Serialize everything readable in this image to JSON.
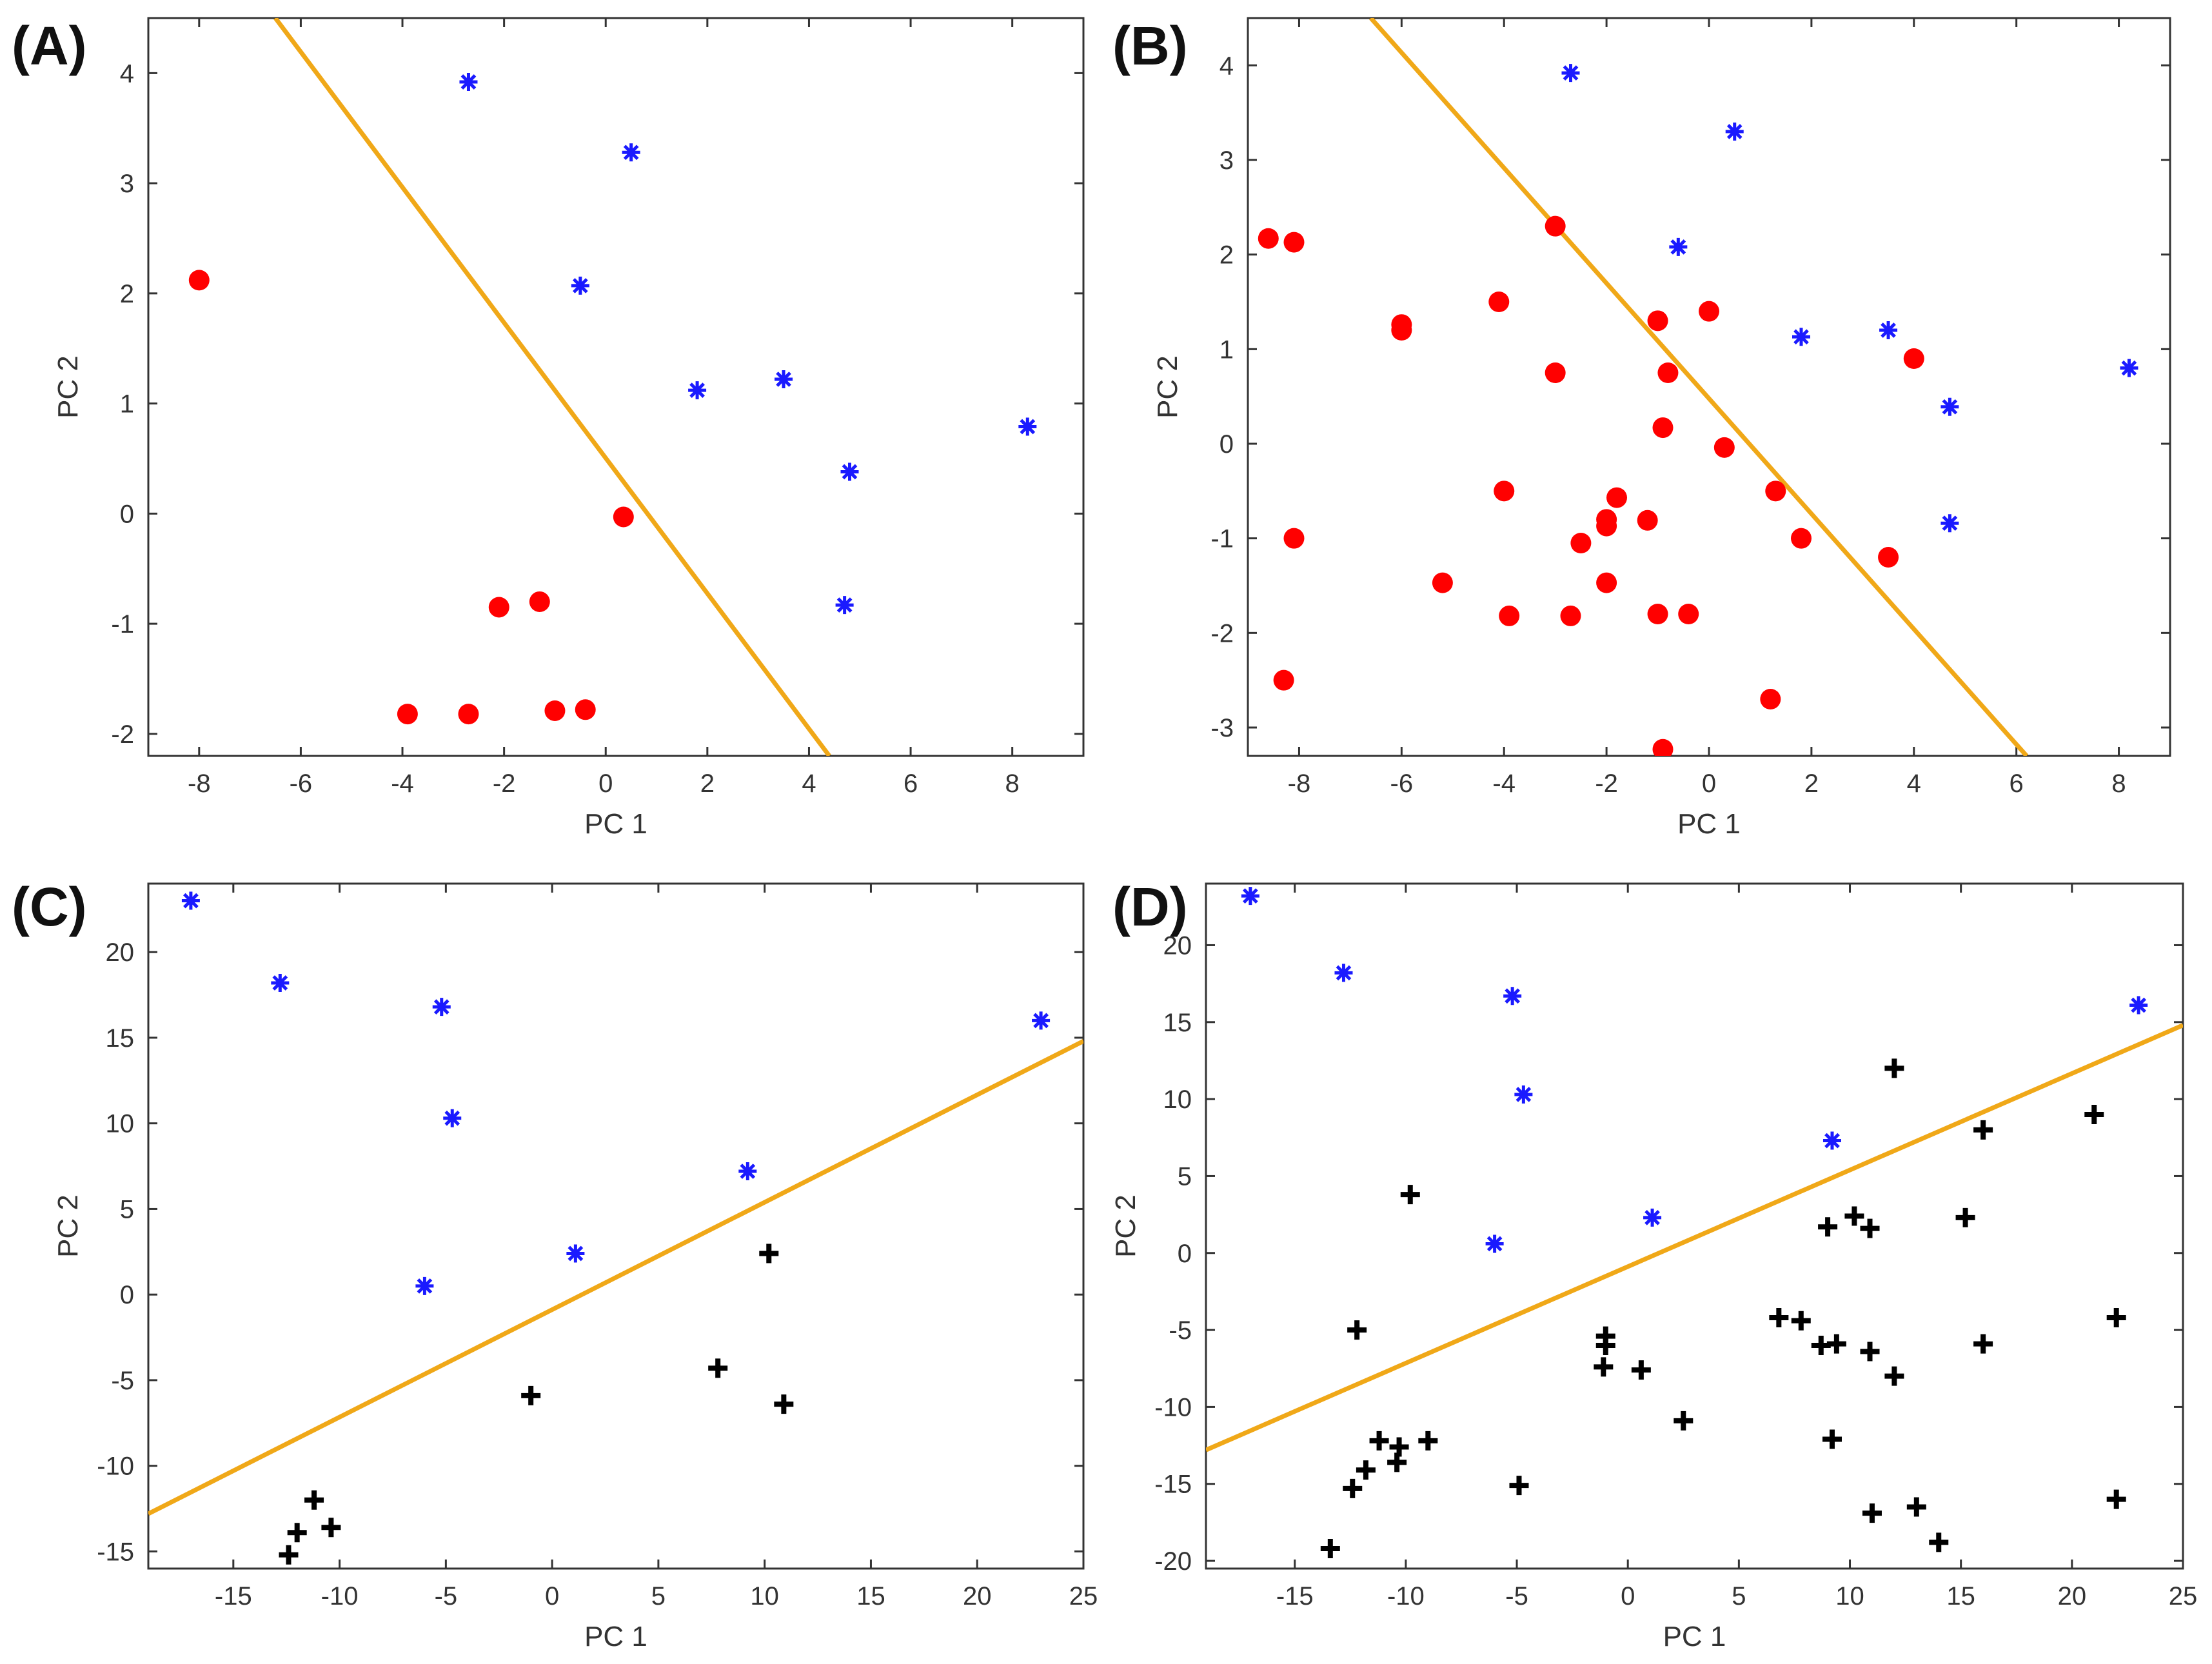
{
  "colors": {
    "class_red": "#ff0000",
    "class_blue": "#1a1aff",
    "class_black": "#000000",
    "boundary": "#f0a818",
    "axis": "#333333"
  },
  "chart_data": [
    {
      "panel_label": "(A)",
      "type": "scatter",
      "xlabel": "PC 1",
      "ylabel": "PC 2",
      "xlim": [
        -9,
        9.4
      ],
      "ylim": [
        -2.2,
        4.5
      ],
      "xticks": [
        -8,
        -6,
        -4,
        -2,
        0,
        2,
        4,
        6,
        8
      ],
      "yticks": [
        -2,
        -1,
        0,
        1,
        2,
        3,
        4
      ],
      "xtick_labels": [
        "-8",
        "-6",
        "-4",
        "-2",
        "0",
        "2",
        "4",
        "6",
        "8"
      ],
      "ytick_labels": [
        "-2",
        "-1",
        "0",
        "1",
        "2",
        "3",
        "4"
      ],
      "grid": false,
      "series": [
        {
          "name": "red",
          "marker": "dot",
          "color": "#ff0000",
          "points": [
            [
              -8,
              2.12
            ],
            [
              0.35,
              -0.03
            ],
            [
              -2.1,
              -0.85
            ],
            [
              -1.3,
              -0.8
            ],
            [
              -3.9,
              -1.82
            ],
            [
              -2.7,
              -1.82
            ],
            [
              -1,
              -1.79
            ],
            [
              -0.4,
              -1.78
            ]
          ]
        },
        {
          "name": "blue",
          "marker": "asterisk",
          "color": "#1a1aff",
          "points": [
            [
              -2.7,
              3.92
            ],
            [
              0.5,
              3.28
            ],
            [
              -0.5,
              2.07
            ],
            [
              1.8,
              1.12
            ],
            [
              3.5,
              1.22
            ],
            [
              4.8,
              0.38
            ],
            [
              8.3,
              0.79
            ],
            [
              4.7,
              -0.83
            ]
          ]
        }
      ],
      "boundary": {
        "x": [
          -6.5,
          4.4
        ],
        "y": [
          4.5,
          -2.2
        ]
      }
    },
    {
      "panel_label": "(B)",
      "type": "scatter",
      "xlabel": "PC 1",
      "ylabel": "PC 2",
      "xlim": [
        -9,
        9
      ],
      "ylim": [
        -3.3,
        4.5
      ],
      "xticks": [
        -8,
        -6,
        -4,
        -2,
        0,
        2,
        4,
        6,
        8
      ],
      "yticks": [
        -3,
        -2,
        -1,
        0,
        1,
        2,
        3,
        4
      ],
      "xtick_labels": [
        "-8",
        "-6",
        "-4",
        "-2",
        "0",
        "2",
        "4",
        "6",
        "8"
      ],
      "ytick_labels": [
        "-3",
        "-2",
        "-1",
        "0",
        "1",
        "2",
        "3",
        "4"
      ],
      "grid": false,
      "series": [
        {
          "name": "red",
          "marker": "dot",
          "color": "#ff0000",
          "points": [
            [
              -8.6,
              2.17
            ],
            [
              -8.1,
              2.13
            ],
            [
              -3,
              2.3
            ],
            [
              -6,
              1.26
            ],
            [
              -6,
              1.2
            ],
            [
              -4.1,
              1.5
            ],
            [
              -1,
              1.3
            ],
            [
              0,
              1.4
            ],
            [
              -3,
              0.75
            ],
            [
              -0.8,
              0.75
            ],
            [
              -0.9,
              0.17
            ],
            [
              0.3,
              -0.04
            ],
            [
              4,
              0.9
            ],
            [
              -4,
              -0.5
            ],
            [
              -2,
              -0.8
            ],
            [
              -1.8,
              -0.57
            ],
            [
              -2,
              -0.87
            ],
            [
              -1.2,
              -0.81
            ],
            [
              -2.5,
              -1.05
            ],
            [
              1.3,
              -0.5
            ],
            [
              1.8,
              -1
            ],
            [
              3.5,
              -1.2
            ],
            [
              -8.1,
              -1
            ],
            [
              -5.2,
              -1.47
            ],
            [
              -2,
              -1.47
            ],
            [
              -3.9,
              -1.82
            ],
            [
              -2.7,
              -1.82
            ],
            [
              -1,
              -1.8
            ],
            [
              -0.4,
              -1.8
            ],
            [
              -8.3,
              -2.5
            ],
            [
              1.2,
              -2.7
            ],
            [
              -0.9,
              -3.23
            ]
          ]
        },
        {
          "name": "blue",
          "marker": "asterisk",
          "color": "#1a1aff",
          "points": [
            [
              -2.7,
              3.92
            ],
            [
              0.5,
              3.3
            ],
            [
              -0.6,
              2.08
            ],
            [
              1.8,
              1.13
            ],
            [
              3.5,
              1.2
            ],
            [
              8.2,
              0.8
            ],
            [
              4.7,
              0.39
            ],
            [
              4.7,
              -0.84
            ]
          ]
        }
      ],
      "boundary": {
        "x": [
          -6.6,
          6.2
        ],
        "y": [
          4.5,
          -3.3
        ]
      }
    },
    {
      "panel_label": "(C)",
      "type": "scatter",
      "xlabel": "PC 1",
      "ylabel": "PC 2",
      "xlim": [
        -19,
        25
      ],
      "ylim": [
        -16,
        24
      ],
      "xticks": [
        -15,
        -10,
        -5,
        0,
        5,
        10,
        15,
        20,
        25
      ],
      "yticks": [
        -15,
        -10,
        -5,
        0,
        5,
        10,
        15,
        20
      ],
      "xtick_labels": [
        "-15",
        "-10",
        "-5",
        "0",
        "5",
        "10",
        "15",
        "20",
        "25"
      ],
      "ytick_labels": [
        "-15",
        "-10",
        "-5",
        "0",
        "5",
        "10",
        "15",
        "20"
      ],
      "grid": false,
      "series": [
        {
          "name": "blue",
          "marker": "asterisk",
          "color": "#1a1aff",
          "points": [
            [
              -17,
              23
            ],
            [
              -12.8,
              18.2
            ],
            [
              -5.2,
              16.8
            ],
            [
              -4.7,
              10.3
            ],
            [
              -6,
              0.5
            ],
            [
              1.1,
              2.4
            ],
            [
              9.2,
              7.2
            ],
            [
              23,
              16
            ]
          ]
        },
        {
          "name": "black",
          "marker": "plus",
          "color": "#000000",
          "points": [
            [
              10.2,
              2.4
            ],
            [
              7.8,
              -4.3
            ],
            [
              10.9,
              -6.4
            ],
            [
              -1,
              -5.9
            ],
            [
              -11.2,
              -12
            ],
            [
              -12,
              -13.9
            ],
            [
              -10.4,
              -13.6
            ],
            [
              -12.4,
              -15.2
            ]
          ]
        }
      ],
      "boundary": {
        "x": [
          -19,
          25
        ],
        "y": [
          -12.8,
          14.8
        ]
      }
    },
    {
      "panel_label": "(D)",
      "type": "scatter",
      "xlabel": "PC 1",
      "ylabel": "PC 2",
      "xlim": [
        -19,
        25
      ],
      "ylim": [
        -20.5,
        24
      ],
      "xticks": [
        -15,
        -10,
        -5,
        0,
        5,
        10,
        15,
        20,
        25
      ],
      "yticks": [
        -20,
        -15,
        -10,
        -5,
        0,
        5,
        10,
        15,
        20
      ],
      "xtick_labels": [
        "-15",
        "-10",
        "-5",
        "0",
        "5",
        "10",
        "15",
        "20",
        "25"
      ],
      "ytick_labels": [
        "-20",
        "-15",
        "-10",
        "-5",
        "0",
        "5",
        "10",
        "15",
        "20"
      ],
      "grid": false,
      "series": [
        {
          "name": "blue",
          "marker": "asterisk",
          "color": "#1a1aff",
          "points": [
            [
              -17,
              23.2
            ],
            [
              -12.8,
              18.2
            ],
            [
              -5.2,
              16.7
            ],
            [
              -4.7,
              10.3
            ],
            [
              -6,
              0.6
            ],
            [
              1.1,
              2.3
            ],
            [
              9.2,
              7.3
            ],
            [
              23,
              16.1
            ]
          ]
        },
        {
          "name": "black",
          "marker": "plus",
          "color": "#000000",
          "points": [
            [
              -9.8,
              3.8
            ],
            [
              -12.2,
              -5
            ],
            [
              -1,
              -5.4
            ],
            [
              -1,
              -6
            ],
            [
              -1.1,
              -7.4
            ],
            [
              0.6,
              -7.6
            ],
            [
              2.5,
              -10.9
            ],
            [
              6.8,
              -4.2
            ],
            [
              7.8,
              -4.4
            ],
            [
              8.7,
              -6
            ],
            [
              9.4,
              -5.9
            ],
            [
              9,
              1.7
            ],
            [
              10.2,
              2.4
            ],
            [
              10.9,
              1.6
            ],
            [
              10.9,
              -6.4
            ],
            [
              12,
              -8
            ],
            [
              12,
              12
            ],
            [
              15.2,
              2.3
            ],
            [
              16,
              8
            ],
            [
              16,
              -5.9
            ],
            [
              21,
              9
            ],
            [
              22,
              -4.2
            ],
            [
              22,
              -16
            ],
            [
              -11.2,
              -12.2
            ],
            [
              -10.3,
              -12.6
            ],
            [
              -10.4,
              -13.6
            ],
            [
              -9,
              -12.2
            ],
            [
              -11.8,
              -14.1
            ],
            [
              -12.4,
              -15.3
            ],
            [
              -4.9,
              -15.1
            ],
            [
              9.2,
              -12.1
            ],
            [
              11,
              -16.9
            ],
            [
              13,
              -16.5
            ],
            [
              14,
              -18.8
            ],
            [
              -13.4,
              -19.2
            ]
          ]
        }
      ],
      "boundary": {
        "x": [
          -19,
          25
        ],
        "y": [
          -12.8,
          14.8
        ]
      }
    }
  ]
}
